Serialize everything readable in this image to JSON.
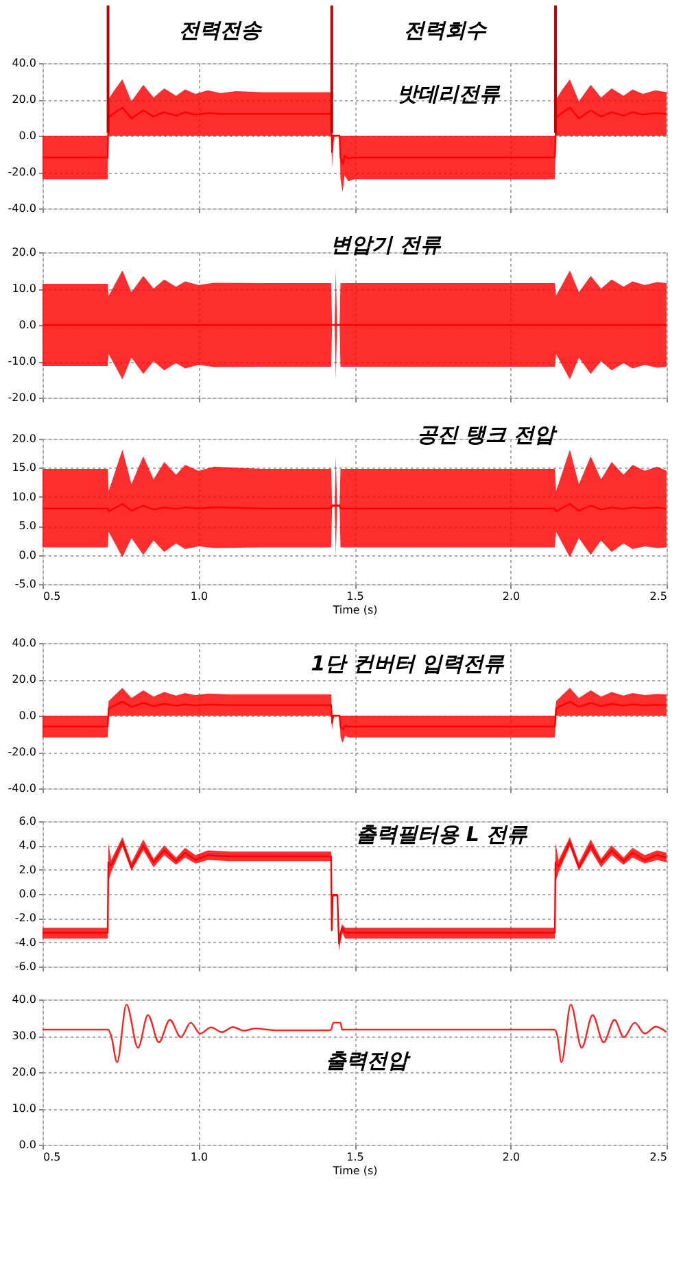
{
  "chart_data": [
    {
      "type": "line",
      "xlim": [
        0.5,
        2.5
      ],
      "ylim": [
        -40,
        40
      ],
      "grid": true,
      "tick_labels": "y",
      "xticks": [
        {
          "value": 0.5,
          "label": null
        },
        {
          "value": 1.0,
          "label": null
        },
        {
          "value": 1.5,
          "label": null
        },
        {
          "value": 2.0,
          "label": null
        },
        {
          "value": 2.5,
          "label": null
        }
      ],
      "yticks": [
        {
          "value": 40,
          "label": "40.0"
        },
        {
          "value": 20,
          "label": "20.0"
        },
        {
          "value": 0,
          "label": "0.0"
        },
        {
          "value": -20,
          "label": "-20.0"
        },
        {
          "value": -40,
          "label": "-40.0"
        }
      ],
      "series": [
        {
          "color": "#ff0000",
          "x": [
            0.5,
            0.709,
            0.711,
            0.73,
            0.756,
            0.785,
            0.823,
            0.856,
            0.89,
            0.928,
            0.957,
            0.99,
            1.03,
            1.07,
            1.12,
            1.2,
            1.425,
            1.428,
            1.432,
            1.452,
            1.455,
            1.462,
            1.468,
            1.48,
            1.5,
            2.142,
            2.146,
            2.164,
            2.19,
            2.219,
            2.257,
            2.29,
            2.324,
            2.362,
            2.391,
            2.424,
            2.464,
            2.5
          ],
          "values": [
            -12,
            -12,
            10,
            12.5,
            15.5,
            9.5,
            14,
            10.5,
            13,
            11,
            13,
            11.5,
            12.5,
            12,
            12,
            12,
            12,
            -9,
            0,
            0,
            -12,
            -15.5,
            -11,
            -12.5,
            -12,
            -12,
            10,
            12.5,
            15.5,
            9.5,
            14,
            10.5,
            13,
            11,
            13,
            11.5,
            12.5,
            12
          ],
          "upper": [
            0,
            0,
            20,
            25,
            31,
            19,
            28,
            21,
            26,
            22,
            25.5,
            23,
            25,
            23.5,
            24.5,
            24,
            24,
            0,
            0,
            0,
            0,
            0,
            0,
            0,
            0,
            0,
            20,
            25,
            31,
            19,
            28,
            21,
            26,
            22,
            25.5,
            23,
            25,
            24
          ],
          "lower": [
            -24,
            -24,
            0,
            0,
            0,
            0,
            0,
            0,
            0,
            0,
            0,
            0,
            0,
            0,
            0,
            0,
            0,
            -18,
            0,
            0,
            -24,
            -31,
            -22,
            -25,
            -24,
            -24,
            0,
            0,
            0,
            0,
            0,
            0,
            0,
            0,
            0,
            0,
            0,
            0
          ]
        }
      ],
      "ref_lines": [
        {
          "axis": "x",
          "value": 0.71,
          "color": "#c00000"
        },
        {
          "axis": "x",
          "value": 1.427,
          "color": "#c00000"
        },
        {
          "axis": "x",
          "value": 2.144,
          "color": "#c00000"
        }
      ],
      "annotations": [
        "전력전송",
        "전력회수",
        "밧데리전류"
      ]
    },
    {
      "type": "line",
      "xlim": [
        0.5,
        2.5
      ],
      "ylim": [
        -20,
        20
      ],
      "grid": true,
      "tick_labels": "y",
      "xticks": [
        {
          "value": 0.5,
          "label": null
        },
        {
          "value": 1.0,
          "label": null
        },
        {
          "value": 1.5,
          "label": null
        },
        {
          "value": 2.0,
          "label": null
        },
        {
          "value": 2.5,
          "label": null
        }
      ],
      "yticks": [
        {
          "value": 20,
          "label": "20.0"
        },
        {
          "value": 10,
          "label": "10.0"
        },
        {
          "value": 0,
          "label": "0.0"
        },
        {
          "value": -10,
          "label": "-10.0"
        },
        {
          "value": -20,
          "label": "-20.0"
        }
      ],
      "series": [
        {
          "color": "#ff0000",
          "x": [
            0.5,
            0.709,
            0.712,
            0.756,
            0.785,
            0.823,
            0.856,
            0.89,
            0.928,
            0.957,
            1.0,
            1.05,
            1.2,
            1.425,
            1.428,
            1.436,
            1.44,
            1.444,
            1.452,
            1.455,
            2.142,
            2.146,
            2.19,
            2.219,
            2.257,
            2.29,
            2.324,
            2.362,
            2.391,
            2.43,
            2.47,
            2.5
          ],
          "values": [
            0,
            0,
            0,
            0,
            0,
            0,
            0,
            0,
            0,
            0,
            0,
            0,
            0,
            0,
            0,
            0,
            0,
            0,
            0,
            0,
            0,
            0,
            0,
            0,
            0,
            0,
            0,
            0,
            0,
            0,
            0,
            0
          ],
          "upper": [
            11.3,
            11.3,
            8,
            15,
            9,
            13.5,
            10,
            12.5,
            10.5,
            12,
            11,
            11.6,
            11.5,
            11.5,
            0,
            0,
            15,
            0,
            0,
            11.5,
            11.5,
            8,
            15,
            9,
            13.5,
            10,
            12.5,
            10.5,
            12,
            11,
            11.8,
            11.5
          ],
          "lower": [
            -11.3,
            -11.3,
            -8,
            -15,
            -9,
            -13.5,
            -10,
            -12.5,
            -10.5,
            -12,
            -11,
            -11.6,
            -11.5,
            -11.5,
            0,
            0,
            -15,
            0,
            0,
            -11.5,
            -11.5,
            -8,
            -15,
            -9,
            -13.5,
            -10,
            -12.5,
            -10.5,
            -12,
            -11,
            -11.8,
            -11.5
          ]
        }
      ],
      "annotations": [
        "변압기 전류"
      ]
    },
    {
      "type": "line",
      "xlim": [
        0.5,
        2.5
      ],
      "ylim": [
        -5,
        20
      ],
      "grid": true,
      "xlabel": "Time (s)",
      "xticks": [
        {
          "value": 0.5,
          "label": "0.5"
        },
        {
          "value": 1.0,
          "label": "1.0"
        },
        {
          "value": 1.5,
          "label": "1.5"
        },
        {
          "value": 2.0,
          "label": "2.0"
        },
        {
          "value": 2.5,
          "label": "2.5"
        }
      ],
      "yticks": [
        {
          "value": 20,
          "label": "20.0"
        },
        {
          "value": 15,
          "label": "15.0"
        },
        {
          "value": 10,
          "label": "10.0"
        },
        {
          "value": 5,
          "label": "5.0"
        },
        {
          "value": 0,
          "label": "0.0"
        },
        {
          "value": -5,
          "label": "-5.0"
        }
      ],
      "series": [
        {
          "color": "#ff0000",
          "x": [
            0.5,
            0.709,
            0.712,
            0.756,
            0.785,
            0.823,
            0.856,
            0.89,
            0.928,
            0.957,
            1.0,
            1.05,
            1.2,
            1.425,
            1.428,
            1.436,
            1.44,
            1.444,
            1.452,
            1.455,
            2.142,
            2.146,
            2.19,
            2.219,
            2.257,
            2.29,
            2.324,
            2.362,
            2.391,
            2.43,
            2.47,
            2.5
          ],
          "values": [
            8,
            8,
            7.5,
            8.8,
            7.6,
            8.5,
            7.8,
            8.2,
            7.9,
            8.2,
            8,
            8.2,
            8,
            8,
            8.5,
            8.5,
            8.5,
            8.5,
            8.5,
            8,
            8,
            7.5,
            8.8,
            7.6,
            8.5,
            7.8,
            8.2,
            7.9,
            8.2,
            8,
            8.2,
            7.9
          ],
          "upper": [
            14.8,
            14.8,
            11,
            18.1,
            12.2,
            17,
            13,
            16,
            13.8,
            15.5,
            14.5,
            15.2,
            14.8,
            14.8,
            8.7,
            8.7,
            17,
            8.7,
            8.7,
            14.8,
            14.8,
            11,
            18.1,
            12.2,
            17,
            13,
            16,
            13.8,
            15.5,
            14.5,
            15.2,
            14.5
          ],
          "lower": [
            1.3,
            1.3,
            4,
            -0.4,
            2.9,
            0,
            2.5,
            0.5,
            2,
            1,
            1.5,
            1.2,
            1.3,
            1.3,
            8.3,
            8.3,
            0,
            8.3,
            8.3,
            1.3,
            1.3,
            4,
            -0.4,
            2.9,
            0,
            2.5,
            0.5,
            2,
            1,
            1.5,
            1.2,
            1.3
          ]
        }
      ],
      "annotations": [
        "공진 탱크 전압"
      ]
    },
    {
      "type": "line",
      "xlim": [
        0.5,
        2.5
      ],
      "ylim": [
        -40,
        40
      ],
      "grid": true,
      "tick_labels": "y",
      "xticks": [
        {
          "value": 0.5,
          "label": null
        },
        {
          "value": 1.0,
          "label": null
        },
        {
          "value": 1.5,
          "label": null
        },
        {
          "value": 2.0,
          "label": null
        },
        {
          "value": 2.5,
          "label": null
        }
      ],
      "yticks": [
        {
          "value": 40,
          "label": "40.0"
        },
        {
          "value": 20,
          "label": "20.0"
        },
        {
          "value": 0,
          "label": "0.0"
        },
        {
          "value": -20,
          "label": "-20.0"
        },
        {
          "value": -40,
          "label": "-40.0"
        }
      ],
      "series": [
        {
          "color": "#ff0000",
          "x": [
            0.5,
            0.709,
            0.712,
            0.73,
            0.756,
            0.785,
            0.823,
            0.856,
            0.89,
            0.928,
            0.957,
            0.99,
            1.03,
            1.1,
            1.425,
            1.428,
            1.432,
            1.452,
            1.455,
            1.462,
            1.47,
            1.48,
            2.142,
            2.146,
            2.164,
            2.19,
            2.219,
            2.257,
            2.29,
            2.324,
            2.362,
            2.391,
            2.43,
            2.47,
            2.5
          ],
          "values": [
            -6,
            -6,
            4,
            5.5,
            7.7,
            4.8,
            7,
            5.2,
            6.5,
            5.5,
            6.2,
            5.6,
            6.1,
            5.8,
            5.8,
            -4,
            0,
            0,
            -6,
            -7.5,
            -5.5,
            -6,
            -6,
            4,
            5.5,
            7.7,
            4.8,
            7,
            5.2,
            6.5,
            5.5,
            6.2,
            5.6,
            6,
            5.8
          ],
          "upper": [
            0,
            0,
            8,
            11,
            15.3,
            9.7,
            14,
            10.5,
            13,
            11,
            12.5,
            11.3,
            12.2,
            11.7,
            11.7,
            0,
            0,
            0,
            0,
            0,
            0,
            0,
            0,
            8,
            11,
            15.3,
            9.7,
            14,
            10.5,
            13,
            11,
            12.5,
            11.3,
            12,
            11.7
          ],
          "lower": [
            -12,
            -12,
            0,
            0,
            0,
            0,
            0,
            0,
            0,
            0,
            0,
            0,
            0,
            0,
            0,
            -8,
            0,
            0,
            -12,
            -15,
            -11,
            -12,
            -12,
            0,
            0,
            0,
            0,
            0,
            0,
            0,
            0,
            0,
            0,
            0,
            0
          ]
        }
      ],
      "annotations": [
        "1단 컨버터 입력전류"
      ]
    },
    {
      "type": "line",
      "xlim": [
        0.5,
        2.5
      ],
      "ylim": [
        -6,
        6
      ],
      "grid": true,
      "tick_labels": "y",
      "xticks": [
        {
          "value": 0.5,
          "label": null
        },
        {
          "value": 1.0,
          "label": null
        },
        {
          "value": 1.5,
          "label": null
        },
        {
          "value": 2.0,
          "label": null
        },
        {
          "value": 2.5,
          "label": null
        }
      ],
      "yticks": [
        {
          "value": 6,
          "label": "6.0"
        },
        {
          "value": 4,
          "label": "4.0"
        },
        {
          "value": 2,
          "label": "2.0"
        },
        {
          "value": 0,
          "label": "0.0"
        },
        {
          "value": -2,
          "label": "-2.0"
        },
        {
          "value": -4,
          "label": "-4.0"
        },
        {
          "value": -6,
          "label": "-6.0"
        }
      ],
      "series": [
        {
          "color": "#ff0000",
          "x": [
            0.5,
            0.709,
            0.711,
            0.72,
            0.756,
            0.785,
            0.823,
            0.856,
            0.89,
            0.928,
            0.957,
            0.99,
            1.03,
            1.1,
            1.425,
            1.427,
            1.43,
            1.445,
            1.45,
            1.46,
            1.47,
            2.142,
            2.144,
            2.154,
            2.19,
            2.219,
            2.257,
            2.29,
            2.324,
            2.362,
            2.391,
            2.43,
            2.47,
            2.5
          ],
          "values": [
            -3.2,
            -3.2,
            2.6,
            2.3,
            4.3,
            2.2,
            4.0,
            2.6,
            3.6,
            2.7,
            3.4,
            2.8,
            3.2,
            3.1,
            3.1,
            -3.0,
            -0.1,
            -0.1,
            -4.1,
            -2.8,
            -3.2,
            -3.2,
            2.6,
            2.3,
            4.3,
            2.2,
            4.0,
            2.6,
            3.6,
            2.7,
            3.4,
            2.8,
            3.2,
            3.0
          ],
          "upper": [
            -2.8,
            -2.8,
            4.2,
            2.8,
            4.7,
            2.6,
            4.5,
            2.9,
            4.0,
            3.0,
            3.8,
            3.2,
            3.6,
            3.5,
            3.5,
            -2.5,
            0,
            0,
            -3.5,
            -2.5,
            -2.8,
            -2.8,
            4.2,
            2.8,
            4.7,
            2.6,
            4.5,
            2.9,
            4.0,
            3.0,
            3.8,
            3.2,
            3.6,
            3.4
          ],
          "lower": [
            -3.7,
            -3.7,
            1.0,
            1.8,
            3.9,
            1.9,
            3.6,
            2.2,
            3.2,
            2.4,
            3.0,
            2.5,
            2.8,
            2.7,
            2.7,
            -3.4,
            -0.2,
            -0.2,
            -4.7,
            -3.2,
            -3.7,
            -3.7,
            1.0,
            1.8,
            3.9,
            1.9,
            3.6,
            2.2,
            3.2,
            2.4,
            3.0,
            2.5,
            2.8,
            2.6
          ]
        }
      ],
      "annotations": [
        "출력필터용 L 전류"
      ]
    },
    {
      "type": "line",
      "xlim": [
        0.5,
        2.5
      ],
      "ylim": [
        0,
        40
      ],
      "grid": true,
      "xlabel": "Time (s)",
      "marker": "none",
      "line_style": "solid",
      "xticks": [
        {
          "value": 0.5,
          "label": "0.5"
        },
        {
          "value": 1.0,
          "label": "1.0"
        },
        {
          "value": 1.5,
          "label": "1.5"
        },
        {
          "value": 2.0,
          "label": "2.0"
        },
        {
          "value": 2.5,
          "label": "2.5"
        }
      ],
      "yticks": [
        {
          "value": 40,
          "label": "40.0"
        },
        {
          "value": 30,
          "label": "30.0"
        },
        {
          "value": 20,
          "label": "20.0"
        },
        {
          "value": 10,
          "label": "10.0"
        },
        {
          "value": 0,
          "label": "0.0"
        }
      ],
      "series": [
        {
          "color": "#ff2020",
          "x": [
            0.5,
            0.71,
            0.72,
            0.739,
            0.769,
            0.806,
            0.838,
            0.873,
            0.908,
            0.943,
            0.975,
            1.005,
            1.04,
            1.075,
            1.11,
            1.145,
            1.18,
            1.25,
            1.42,
            1.425,
            1.432,
            1.455,
            1.46,
            2.14,
            2.15,
            2.163,
            2.193,
            2.228,
            2.263,
            2.298,
            2.333,
            2.363,
            2.398,
            2.43,
            2.465,
            2.5
          ],
          "values": [
            31.7,
            31.7,
            30,
            22.7,
            38.6,
            26.7,
            35.7,
            28.2,
            34.4,
            29.6,
            33.6,
            30.6,
            32.3,
            31.0,
            32.4,
            31.4,
            32.0,
            31.5,
            31.5,
            31.7,
            33.6,
            33.6,
            31.7,
            31.7,
            30,
            22.7,
            38.6,
            26.7,
            35.7,
            28.2,
            34.4,
            29.6,
            33.6,
            30.6,
            32.5,
            31.0
          ]
        }
      ],
      "annotations": [
        "출력전압"
      ]
    }
  ]
}
